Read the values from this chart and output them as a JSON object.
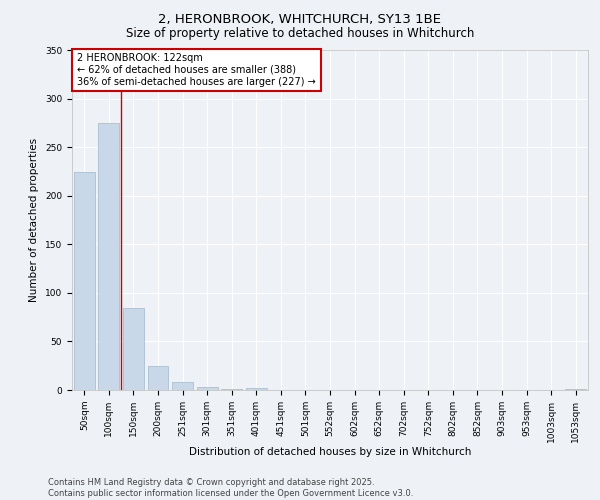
{
  "title": "2, HERONBROOK, WHITCHURCH, SY13 1BE",
  "subtitle": "Size of property relative to detached houses in Whitchurch",
  "xlabel": "Distribution of detached houses by size in Whitchurch",
  "ylabel": "Number of detached properties",
  "bar_color": "#c8d8e8",
  "bar_edgecolor": "#a0b8cc",
  "background_color": "#eef2f7",
  "grid_color": "#ffffff",
  "categories": [
    "50sqm",
    "100sqm",
    "150sqm",
    "200sqm",
    "251sqm",
    "301sqm",
    "351sqm",
    "401sqm",
    "451sqm",
    "501sqm",
    "552sqm",
    "602sqm",
    "652sqm",
    "702sqm",
    "752sqm",
    "802sqm",
    "852sqm",
    "903sqm",
    "953sqm",
    "1003sqm",
    "1053sqm"
  ],
  "values": [
    224,
    275,
    84,
    25,
    8,
    3,
    1,
    2,
    0,
    0,
    0,
    0,
    0,
    0,
    0,
    0,
    0,
    0,
    0,
    0,
    1
  ],
  "ylim": [
    0,
    350
  ],
  "yticks": [
    0,
    50,
    100,
    150,
    200,
    250,
    300,
    350
  ],
  "property_line_x": 1.5,
  "property_line_color": "#cc0000",
  "annotation_text": "2 HERONBROOK: 122sqm\n← 62% of detached houses are smaller (388)\n36% of semi-detached houses are larger (227) →",
  "annotation_box_color": "#ffffff",
  "annotation_box_edgecolor": "#cc0000",
  "footer_text": "Contains HM Land Registry data © Crown copyright and database right 2025.\nContains public sector information licensed under the Open Government Licence v3.0.",
  "title_fontsize": 9.5,
  "subtitle_fontsize": 8.5,
  "label_fontsize": 7.5,
  "tick_fontsize": 6.5,
  "annotation_fontsize": 7,
  "footer_fontsize": 6
}
